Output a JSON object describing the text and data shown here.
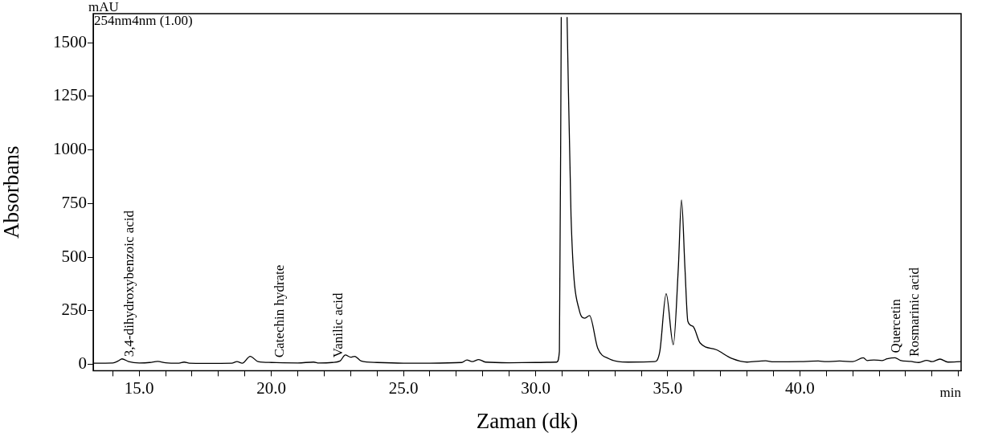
{
  "chart_data": {
    "type": "line",
    "xlabel": "Zaman (dk)",
    "ylabel": "Absorbans",
    "color": "#000000",
    "grid": false,
    "marker": "none",
    "x": [
      13.26,
      14.0,
      14.2,
      14.35,
      14.6,
      15.0,
      15.4,
      15.7,
      16.0,
      16.5,
      16.7,
      16.9,
      17.5,
      18.5,
      18.7,
      18.9,
      19.2,
      19.5,
      20.0,
      21.0,
      21.6,
      21.8,
      22.3,
      22.6,
      22.8,
      23.0,
      23.15,
      23.4,
      24.0,
      25.0,
      26.0,
      27.2,
      27.4,
      27.6,
      27.85,
      28.1,
      29.0,
      30.0,
      30.8,
      30.9,
      30.97,
      31.08,
      31.19,
      31.34,
      31.65,
      31.86,
      32.04,
      32.35,
      32.77,
      33.5,
      34.5,
      34.7,
      34.94,
      35.21,
      35.4,
      35.52,
      35.65,
      35.76,
      35.95,
      36.22,
      36.83,
      37.44,
      38.0,
      38.7,
      39.0,
      40.0,
      40.7,
      41.0,
      41.5,
      42.0,
      42.4,
      42.55,
      42.8,
      43.1,
      43.3,
      43.6,
      43.8,
      44.2,
      44.5,
      44.8,
      45.0,
      45.3,
      45.6,
      46.1
    ],
    "values": [
      5,
      6,
      15,
      25,
      12,
      6,
      8,
      13,
      7,
      5,
      10,
      5,
      4,
      5,
      12,
      5,
      37,
      12,
      8,
      6,
      10,
      6,
      8,
      15,
      43,
      33,
      37,
      15,
      8,
      5,
      5,
      8,
      20,
      12,
      22,
      10,
      7,
      8,
      10,
      60,
      1620,
      null,
      1620,
      691,
      253,
      215,
      227,
      75,
      26,
      10,
      12,
      60,
      329,
      91,
      450,
      767,
      450,
      200,
      177,
      100,
      68,
      26,
      10,
      16,
      11,
      12,
      15,
      12,
      15,
      12,
      30,
      17,
      20,
      17,
      25,
      30,
      18,
      13,
      8,
      18,
      12,
      24,
      10,
      12
    ],
    "xlim": [
      13.26,
      46.1
    ],
    "ylim": [
      -30,
      1636
    ],
    "xticks": [
      {
        "value": 14,
        "label": null
      },
      {
        "value": 15,
        "label": "15.0"
      },
      {
        "value": 16,
        "label": null
      },
      {
        "value": 17,
        "label": null
      },
      {
        "value": 18,
        "label": null
      },
      {
        "value": 19,
        "label": null
      },
      {
        "value": 20,
        "label": "20.0"
      },
      {
        "value": 21,
        "label": null
      },
      {
        "value": 22,
        "label": null
      },
      {
        "value": 23,
        "label": null
      },
      {
        "value": 24,
        "label": null
      },
      {
        "value": 25,
        "label": "25.0"
      },
      {
        "value": 26,
        "label": null
      },
      {
        "value": 27,
        "label": null
      },
      {
        "value": 28,
        "label": null
      },
      {
        "value": 29,
        "label": null
      },
      {
        "value": 30,
        "label": "30.0"
      },
      {
        "value": 31,
        "label": null
      },
      {
        "value": 32,
        "label": null
      },
      {
        "value": 33,
        "label": null
      },
      {
        "value": 34,
        "label": null
      },
      {
        "value": 35,
        "label": "35.0"
      },
      {
        "value": 36,
        "label": null
      },
      {
        "value": 37,
        "label": null
      },
      {
        "value": 38,
        "label": null
      },
      {
        "value": 39,
        "label": null
      },
      {
        "value": 40,
        "label": "40.0"
      },
      {
        "value": 41,
        "label": null
      },
      {
        "value": 42,
        "label": null
      },
      {
        "value": 43,
        "label": null
      },
      {
        "value": 44,
        "label": null
      },
      {
        "value": 45,
        "label": null
      },
      {
        "value": 46,
        "label": null
      }
    ],
    "yticks": [
      0,
      250,
      500,
      750,
      1000,
      1250,
      1500
    ],
    "annotations": [
      "mAU",
      "254nm4nm (1.00)",
      "min",
      {
        "text": "3,4-dihydroxybenzoic acid",
        "x": 14.6,
        "y": 12
      },
      {
        "text": "Catechin hydrate",
        "x": 20.27,
        "y": 8
      },
      {
        "text": "Vanilic acid",
        "x": 22.5,
        "y": 8
      },
      {
        "text": "Quercetin",
        "x": 43.6,
        "y": 30
      },
      {
        "text": "Rosmarinic acid",
        "x": 44.3,
        "y": 13
      }
    ]
  }
}
